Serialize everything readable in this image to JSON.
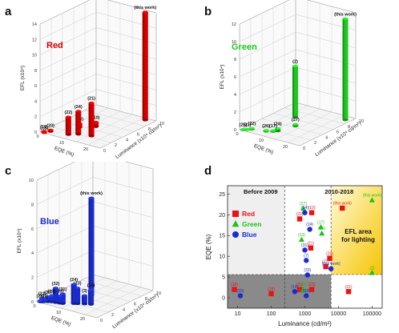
{
  "chart_data": [
    {
      "panel": "a",
      "type": "bar3d",
      "series_label": "Red",
      "color": "#d40000",
      "zlabel": "EFL (x10⁴)",
      "xlabel": "EQE (%)",
      "ylabel": "Luminance (x10⁴ cd/m²)",
      "zticks": [
        "0",
        "2",
        "4",
        "6",
        "8",
        "10",
        "12",
        "14"
      ],
      "xticks": [
        "0",
        "10",
        "20"
      ],
      "yticks": [
        "0",
        "2",
        "4",
        "6",
        "8",
        "10"
      ],
      "bars": [
        {
          "label": "(19)",
          "eqe": 1,
          "lum": 0.3,
          "efl": 0.1
        },
        {
          "label": "(20)",
          "eqe": 2.5,
          "lum": 0.8,
          "efl": 0.2
        },
        {
          "label": "(18)",
          "eqe": 1.5,
          "lum": 0.1,
          "efl": 0.05
        },
        {
          "label": "(22)",
          "eqe": 9,
          "lum": 1.2,
          "efl": 2.3
        },
        {
          "label": "(24)",
          "eqe": 11.5,
          "lum": 1.9,
          "efl": 3.0
        },
        {
          "label": "(23)",
          "eqe": 8,
          "lum": 3.6,
          "efl": 0.5
        },
        {
          "label": "(21)",
          "eqe": 16,
          "lum": 2.3,
          "efl": 4.3
        },
        {
          "label": "(10)",
          "eqe": 12,
          "lum": 4.8,
          "efl": 0.6
        },
        {
          "label": "(this work)",
          "eqe": 21.6,
          "lum": 9.5,
          "efl": 14
        }
      ]
    },
    {
      "panel": "b",
      "type": "bar3d",
      "series_label": "Green",
      "color": "#1ec81e",
      "zlabel": "EFL (x10⁴)",
      "xlabel": "EQE (%)",
      "ylabel": "Luminance (x10⁴ cd/m²)",
      "zticks": [
        "0",
        "2",
        "4",
        "6",
        "8",
        "10",
        "12"
      ],
      "xticks": [
        "0",
        "10",
        "20"
      ],
      "yticks": [
        "0",
        "2",
        "4",
        "6",
        "8",
        "10"
      ],
      "bars": [
        {
          "label": "(25)",
          "eqe": 1,
          "lum": 0.2,
          "efl": 0.05
        },
        {
          "label": "(21)",
          "eqe": 2,
          "lum": 0.5,
          "efl": 0.05
        },
        {
          "label": "(22)",
          "eqe": 3,
          "lum": 0.9,
          "efl": 0.1
        },
        {
          "label": "(26)",
          "eqe": 8,
          "lum": 1.3,
          "efl": 0.1
        },
        {
          "label": "(24)",
          "eqe": 11,
          "lum": 2.1,
          "efl": 0.3
        },
        {
          "label": "(17)",
          "eqe": 10,
          "lum": 1.7,
          "efl": 0.1
        },
        {
          "label": "(27)",
          "eqe": 13,
          "lum": 4.4,
          "efl": 0.2
        },
        {
          "label": "(2)",
          "eqe": 8,
          "lum": 6.5,
          "efl": 5.8
        },
        {
          "label": "(this work)",
          "eqe": 23,
          "lum": 9.0,
          "efl": 11.5
        }
      ]
    },
    {
      "panel": "c",
      "type": "bar3d",
      "series_label": "Blue",
      "color": "#1a2ccc",
      "zlabel": "EFL (x10⁴)",
      "xlabel": "EQE (%)",
      "ylabel": "Luminance (x10⁴ cd/m²)",
      "zticks": [
        "0",
        "2",
        "4",
        "6",
        "8",
        "10"
      ],
      "xticks": [
        "0",
        "10",
        "20"
      ],
      "yticks": [
        "0",
        "2",
        "4",
        "6",
        "8",
        "10"
      ],
      "bars": [
        {
          "label": "(28)",
          "eqe": 1,
          "lum": 0.2,
          "efl": 0.1
        },
        {
          "label": "(21)",
          "eqe": 1.5,
          "lum": 0.3,
          "efl": 0.3
        },
        {
          "label": "(22)",
          "eqe": 2,
          "lum": 0.5,
          "efl": 0.1
        },
        {
          "label": "(30)",
          "eqe": 3,
          "lum": 0.7,
          "efl": 0.4
        },
        {
          "label": "(29)",
          "eqe": 4,
          "lum": 0.9,
          "efl": 0.5
        },
        {
          "label": "(32)",
          "eqe": 5.5,
          "lum": 1.0,
          "efl": 1.2
        },
        {
          "label": "(13)",
          "eqe": 7,
          "lum": 1.1,
          "efl": 0.6
        },
        {
          "label": "(31)",
          "eqe": 8,
          "lum": 1.2,
          "efl": 0.8
        },
        {
          "label": "(24)",
          "eqe": 11,
          "lum": 1.9,
          "efl": 1.6
        },
        {
          "label": "(13)",
          "eqe": 12,
          "lum": 2.1,
          "efl": 1.3
        },
        {
          "label": "(3)",
          "eqe": 14,
          "lum": 2.5,
          "efl": 0.7
        },
        {
          "label": "(14)",
          "eqe": 16,
          "lum": 2.8,
          "efl": 1.2
        },
        {
          "label": "(this work)",
          "eqe": 11,
          "lum": 5.0,
          "efl": 8
        }
      ]
    },
    {
      "panel": "d",
      "type": "scatter",
      "xlabel": "Luminance (cd/m²)",
      "ylabel": "EQE (%)",
      "xscale": "log",
      "xlim": [
        5,
        200000
      ],
      "ylim": [
        -2.5,
        27
      ],
      "xticks": [
        {
          "v": 10,
          "t": "10"
        },
        {
          "v": 100,
          "t": "100"
        },
        {
          "v": 1000,
          "t": "1000"
        },
        {
          "v": 10000,
          "t": "10000"
        },
        {
          "v": 100000,
          "t": "100000"
        }
      ],
      "yticks": [
        0,
        5,
        10,
        15,
        20,
        25
      ],
      "regions": {
        "before": "Before 2009",
        "recent": "2010-2018",
        "efl_area": [
          "EFL area",
          "for lighting"
        ]
      },
      "legend": [
        {
          "name": "Red",
          "color": "#e81414",
          "marker": "square"
        },
        {
          "name": "Green",
          "color": "#19c319",
          "marker": "triangle"
        },
        {
          "name": "Blue",
          "color": "#1a2ccc",
          "marker": "circle"
        }
      ],
      "points": [
        {
          "s": "Red",
          "x": 8,
          "y": 2,
          "label": "(18)"
        },
        {
          "s": "Red",
          "x": 100,
          "y": 1,
          "label": "(19)"
        },
        {
          "s": "Red",
          "x": 700,
          "y": 2,
          "label": "(20)"
        },
        {
          "s": "Red",
          "x": 1600,
          "y": 2,
          "label": "(23)"
        },
        {
          "s": "Red",
          "x": 20000,
          "y": 1.5,
          "label": "(21)"
        },
        {
          "s": "Red",
          "x": 700,
          "y": 19,
          "label": "(22)"
        },
        {
          "s": "Red",
          "x": 1600,
          "y": 20.5,
          "label": "(10)"
        },
        {
          "s": "Red",
          "x": 1500,
          "y": 12,
          "label": "(11)"
        },
        {
          "s": "Red",
          "x": 5500,
          "y": 9.5,
          "label": "(24)"
        },
        {
          "s": "Red",
          "x": 4200,
          "y": 7.5,
          "label": "(22)"
        },
        {
          "s": "Red",
          "x": 13000,
          "y": 21.6,
          "label": "(this work)"
        },
        {
          "s": "Green",
          "x": 900,
          "y": 21.5,
          "label": "(27)"
        },
        {
          "s": "Green",
          "x": 3000,
          "y": 17,
          "label": "(17)"
        },
        {
          "s": "Green",
          "x": 3200,
          "y": 15.5,
          "label": "(26)"
        },
        {
          "s": "Green",
          "x": 800,
          "y": 14,
          "label": "(13)"
        },
        {
          "s": "Green",
          "x": 900,
          "y": 2,
          "label": "(28)"
        },
        {
          "s": "Green",
          "x": 100000,
          "y": 6,
          "label": "(2)"
        },
        {
          "s": "Green",
          "x": 100000,
          "y": 23.5,
          "label": "(this work)"
        },
        {
          "s": "Blue",
          "x": 12,
          "y": 0.5,
          "label": "(23)"
        },
        {
          "s": "Blue",
          "x": 500,
          "y": 1.5,
          "label": "(14)"
        },
        {
          "s": "Blue",
          "x": 1100,
          "y": 0.5,
          "label": "(28)"
        },
        {
          "s": "Blue",
          "x": 1000,
          "y": 20.5,
          "label": "(14)"
        },
        {
          "s": "Blue",
          "x": 1400,
          "y": 16.5,
          "label": "(24)"
        },
        {
          "s": "Blue",
          "x": 1000,
          "y": 11.5,
          "label": "(31)"
        },
        {
          "s": "Blue",
          "x": 1100,
          "y": 9,
          "label": "(7)"
        },
        {
          "s": "Blue",
          "x": 6000,
          "y": 7,
          "label": "(this work)"
        },
        {
          "s": "Blue",
          "x": 1200,
          "y": 5.5,
          "label": "(33)"
        }
      ]
    }
  ],
  "panel_letters": {
    "a": "a",
    "b": "b",
    "c": "c",
    "d": "d"
  }
}
